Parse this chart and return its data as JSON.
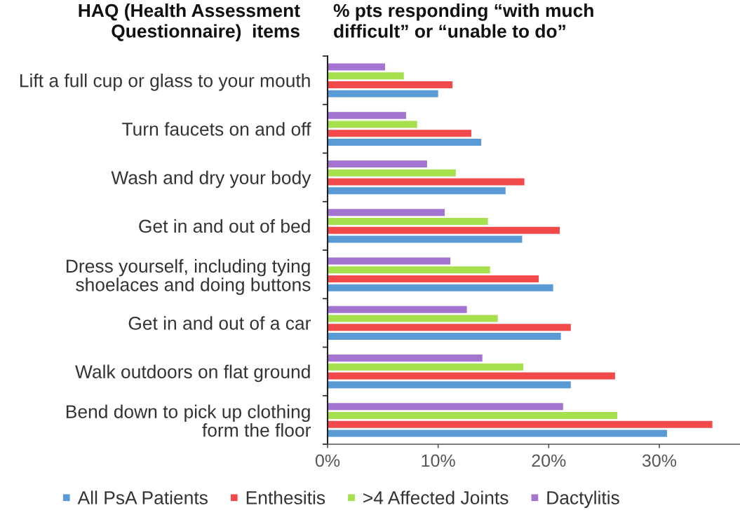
{
  "chart_data": {
    "type": "bar",
    "orientation": "horizontal",
    "title": "% pts responding “with much\ndifficult” or “unable to do”",
    "ylabel": "HAQ (Health Assessment\nQuestionnaire)  items",
    "categories": [
      "Lift a full cup or glass to your mouth",
      "Turn faucets on and off",
      "Wash and dry your body",
      "Get in and out of bed",
      "Dress yourself, including tying\nshoelaces and doing buttons",
      "Get in and out of a car",
      "Walk outdoors on flat ground",
      "Bend down to pick up clothing\nform the floor"
    ],
    "series": [
      {
        "name": "All PsA Patients",
        "color": "#5b9bd5",
        "values": [
          10.0,
          13.9,
          16.1,
          17.6,
          20.4,
          21.1,
          22.0,
          30.7
        ]
      },
      {
        "name": "Enthesitis",
        "color": "#f24a4a",
        "values": [
          11.3,
          13.0,
          17.8,
          21.0,
          19.1,
          22.0,
          26.0,
          34.8
        ]
      },
      {
        "name": ">4 Affected Joints",
        "color": "#a6e04e",
        "values": [
          6.9,
          8.1,
          11.6,
          14.5,
          14.7,
          15.4,
          17.7,
          26.2
        ]
      },
      {
        "name": "Dactylitis",
        "color": "#a374d0",
        "values": [
          5.2,
          7.1,
          9.0,
          10.6,
          11.1,
          12.6,
          14.0,
          21.3
        ]
      }
    ],
    "xlim": [
      0,
      37.3
    ],
    "xticks": [
      {
        "value": 0,
        "label": "0%"
      },
      {
        "value": 10,
        "label": "10%"
      },
      {
        "value": 20,
        "label": "20%"
      },
      {
        "value": 30,
        "label": "30%"
      }
    ],
    "legend": "bottom"
  }
}
